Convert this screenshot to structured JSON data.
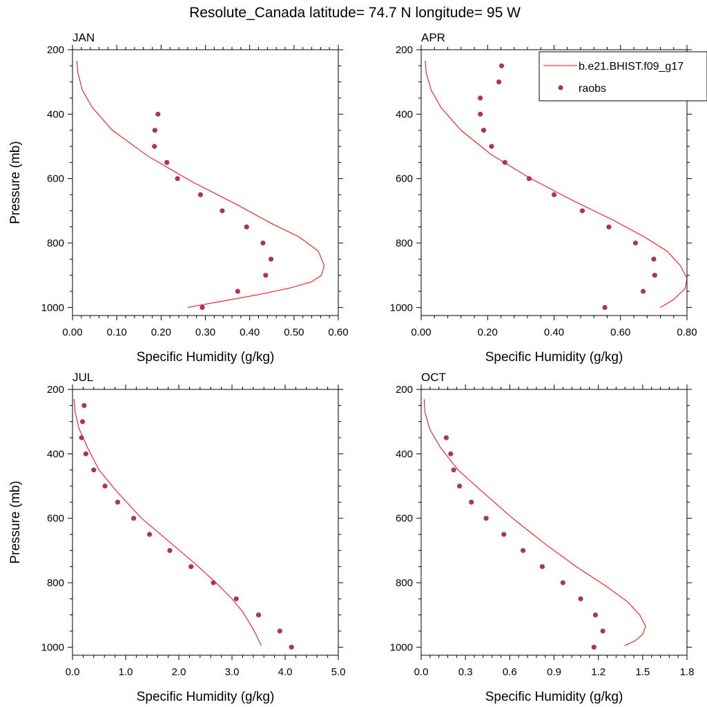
{
  "title": "Resolute_Canada  latitude= 74.7 N longitude= 95 W",
  "colors": {
    "model_line": "#ff0000",
    "obs_marker": "#b03060",
    "axis": "#000000"
  },
  "legend": {
    "entries": [
      {
        "label": "b.e21.BHIST.f09_g17",
        "kind": "line"
      },
      {
        "label": "raobs",
        "kind": "marker"
      }
    ]
  },
  "chart_data": [
    {
      "type": "line+scatter",
      "panel": "JAN",
      "xlabel": "Specific Humidity (g/kg)",
      "ylabel": "Pressure (mb)",
      "xlim": [
        0,
        0.6
      ],
      "ylim": [
        200,
        1025
      ],
      "y_inverted": true,
      "xticks": [
        0,
        0.1,
        0.2,
        0.3,
        0.4,
        0.5,
        0.6
      ],
      "xtick_labels": [
        "0.00",
        "0.10",
        "0.20",
        "0.30",
        "0.40",
        "0.50",
        "0.60"
      ],
      "yticks": [
        200,
        400,
        600,
        800,
        1000
      ],
      "ytick_labels": [
        "200",
        "400",
        "600",
        "800",
        "1000"
      ],
      "model": {
        "name": "b.e21.BHIST.f09_g17",
        "x": [
          0.01,
          0.012,
          0.022,
          0.045,
          0.09,
          0.17,
          0.27,
          0.37,
          0.45,
          0.51,
          0.555,
          0.568,
          0.562,
          0.54,
          0.49,
          0.42,
          0.34,
          0.26
        ],
        "y": [
          235,
          270,
          325,
          380,
          450,
          530,
          610,
          680,
          740,
          780,
          825,
          870,
          900,
          920,
          940,
          960,
          980,
          1000
        ]
      },
      "obs": {
        "name": "raobs",
        "x": [
          0.193,
          0.186,
          0.185,
          0.213,
          0.237,
          0.289,
          0.338,
          0.393,
          0.43,
          0.448,
          0.436,
          0.373,
          0.293
        ],
        "y": [
          400,
          450,
          500,
          550,
          600,
          650,
          700,
          750,
          800,
          850,
          900,
          950,
          1000
        ]
      }
    },
    {
      "type": "line+scatter",
      "panel": "APR",
      "xlabel": "Specific Humidity (g/kg)",
      "ylabel": "",
      "xlim": [
        0,
        0.8
      ],
      "ylim": [
        200,
        1025
      ],
      "y_inverted": true,
      "xticks": [
        0,
        0.2,
        0.4,
        0.6,
        0.8
      ],
      "xtick_labels": [
        "0.00",
        "0.20",
        "0.40",
        "0.60",
        "0.80"
      ],
      "yticks": [
        200,
        400,
        600,
        800,
        1000
      ],
      "ytick_labels": [
        "200",
        "400",
        "600",
        "800",
        "1000"
      ],
      "model": {
        "name": "b.e21.BHIST.f09_g17",
        "x": [
          0.012,
          0.015,
          0.03,
          0.06,
          0.12,
          0.21,
          0.33,
          0.46,
          0.58,
          0.67,
          0.74,
          0.78,
          0.8,
          0.795,
          0.76,
          0.72
        ],
        "y": [
          235,
          270,
          325,
          380,
          450,
          525,
          600,
          670,
          730,
          780,
          825,
          870,
          910,
          940,
          975,
          1000
        ]
      },
      "obs": {
        "name": "raobs",
        "x": [
          0.242,
          0.234,
          0.178,
          0.178,
          0.188,
          0.212,
          0.252,
          0.325,
          0.4,
          0.485,
          0.565,
          0.645,
          0.7,
          0.703,
          0.668,
          0.553
        ],
        "y": [
          250,
          300,
          350,
          400,
          450,
          500,
          550,
          600,
          650,
          700,
          750,
          800,
          850,
          900,
          950,
          1000
        ]
      }
    },
    {
      "type": "line+scatter",
      "panel": "JUL",
      "xlabel": "Specific Humidity (g/kg)",
      "ylabel": "Pressure (mb)",
      "xlim": [
        0,
        5
      ],
      "ylim": [
        200,
        1025
      ],
      "y_inverted": true,
      "xticks": [
        0,
        1,
        2,
        3,
        4,
        5
      ],
      "xtick_labels": [
        "0.0",
        "1.0",
        "2.0",
        "3.0",
        "4.0",
        "5.0"
      ],
      "yticks": [
        200,
        400,
        600,
        800,
        1000
      ],
      "ytick_labels": [
        "200",
        "400",
        "600",
        "800",
        "1000"
      ],
      "model": {
        "name": "b.e21.BHIST.f09_g17",
        "x": [
          0.03,
          0.05,
          0.12,
          0.28,
          0.5,
          0.85,
          1.3,
          1.8,
          2.3,
          2.7,
          3.0,
          3.2,
          3.33,
          3.45,
          3.55
        ],
        "y": [
          230,
          270,
          320,
          380,
          450,
          520,
          600,
          670,
          740,
          800,
          850,
          890,
          925,
          960,
          995
        ]
      },
      "obs": {
        "name": "raobs",
        "x": [
          0.22,
          0.19,
          0.17,
          0.25,
          0.4,
          0.61,
          0.85,
          1.15,
          1.45,
          1.83,
          2.23,
          2.65,
          3.08,
          3.5,
          3.9,
          4.12
        ],
        "y": [
          250,
          300,
          350,
          400,
          450,
          500,
          550,
          600,
          650,
          700,
          750,
          800,
          850,
          900,
          950,
          1000
        ]
      }
    },
    {
      "type": "line+scatter",
      "panel": "OCT",
      "xlabel": "Specific Humidity (g/kg)",
      "ylabel": "",
      "xlim": [
        0,
        1.8
      ],
      "ylim": [
        200,
        1025
      ],
      "y_inverted": true,
      "xticks": [
        0,
        0.3,
        0.6,
        0.9,
        1.2,
        1.5,
        1.8
      ],
      "xtick_labels": [
        "0.0",
        "0.3",
        "0.6",
        "0.9",
        "1.2",
        "1.5",
        "1.8"
      ],
      "yticks": [
        200,
        400,
        600,
        800,
        1000
      ],
      "ytick_labels": [
        "200",
        "400",
        "600",
        "800",
        "1000"
      ],
      "model": {
        "name": "b.e21.BHIST.f09_g17",
        "x": [
          0.02,
          0.025,
          0.06,
          0.13,
          0.25,
          0.42,
          0.62,
          0.84,
          1.05,
          1.25,
          1.4,
          1.48,
          1.52,
          1.5,
          1.45,
          1.38
        ],
        "y": [
          230,
          270,
          325,
          380,
          450,
          520,
          600,
          680,
          750,
          810,
          860,
          900,
          935,
          960,
          980,
          995
        ]
      },
      "obs": {
        "name": "raobs",
        "x": [
          0.17,
          0.2,
          0.22,
          0.26,
          0.34,
          0.44,
          0.56,
          0.69,
          0.82,
          0.96,
          1.08,
          1.18,
          1.23,
          1.17
        ],
        "y": [
          350,
          400,
          450,
          500,
          550,
          600,
          650,
          700,
          750,
          800,
          850,
          900,
          950,
          1000
        ]
      }
    }
  ]
}
